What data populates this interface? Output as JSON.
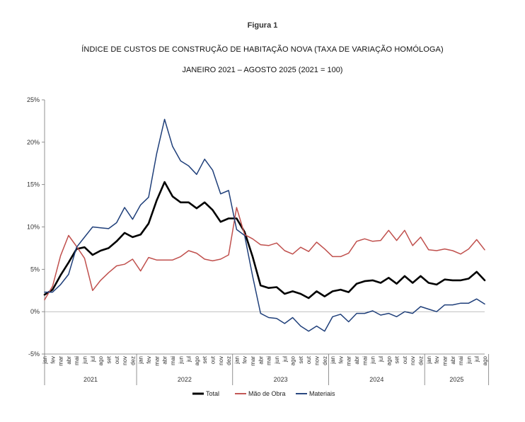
{
  "figure_label": "Figura 1",
  "chart_data": {
    "type": "line",
    "title": "ÍNDICE DE CUSTOS DE CONSTRUÇÃO DE HABITAÇÃO NOVA (TAXA DE VARIAÇÃO HOMÓLOGA)",
    "subtitle": "JANEIRO 2021 – AGOSTO 2025 (2021 = 100)",
    "xlabel": "",
    "ylabel": "",
    "ylim": [
      -5,
      25
    ],
    "yticks": [
      25,
      20,
      15,
      10,
      5,
      0,
      -5
    ],
    "ytick_labels": [
      "25%",
      "20%",
      "15%",
      "10%",
      "5%",
      "0%",
      "-5%"
    ],
    "month_labels": [
      "jan",
      "fev",
      "mar",
      "abr",
      "mai",
      "jun",
      "jul",
      "ago",
      "set",
      "out",
      "nov",
      "dez"
    ],
    "years": [
      {
        "label": "2021",
        "months": 12
      },
      {
        "label": "2022",
        "months": 12
      },
      {
        "label": "2023",
        "months": 12
      },
      {
        "label": "2024",
        "months": 12
      },
      {
        "label": "2025",
        "months": 8
      }
    ],
    "legend_position": "bottom",
    "series": [
      {
        "name": "Total",
        "color": "#000000",
        "width": 2.6,
        "values": [
          2.0,
          2.6,
          4.3,
          5.8,
          7.4,
          7.6,
          6.7,
          7.2,
          7.5,
          8.3,
          9.3,
          8.8,
          9.1,
          10.4,
          13.1,
          15.3,
          13.6,
          12.9,
          12.9,
          12.2,
          12.9,
          12.0,
          10.6,
          11.0,
          11.0,
          9.4,
          6.5,
          3.1,
          2.8,
          2.9,
          2.1,
          2.4,
          2.1,
          1.6,
          2.4,
          1.8,
          2.4,
          2.6,
          2.3,
          3.3,
          3.6,
          3.7,
          3.4,
          4.0,
          3.3,
          4.2,
          3.4,
          4.2,
          3.4,
          3.2,
          3.8,
          3.7,
          3.7,
          3.9,
          4.7,
          3.7
        ]
      },
      {
        "name": "Mão de Obra",
        "color": "#c0504d",
        "width": 1.5,
        "values": [
          1.4,
          3.0,
          6.6,
          9.0,
          7.7,
          6.3,
          2.5,
          3.7,
          4.6,
          5.4,
          5.6,
          6.2,
          4.8,
          6.4,
          6.1,
          6.1,
          6.1,
          6.5,
          7.2,
          6.9,
          6.2,
          6.0,
          6.2,
          6.7,
          12.3,
          9.1,
          8.6,
          7.9,
          7.8,
          8.1,
          7.2,
          6.8,
          7.6,
          7.1,
          8.2,
          7.4,
          6.5,
          6.5,
          6.9,
          8.3,
          8.6,
          8.3,
          8.4,
          9.6,
          8.4,
          9.6,
          7.8,
          8.8,
          7.3,
          7.2,
          7.4,
          7.2,
          6.8,
          7.4,
          8.5,
          7.3
        ]
      },
      {
        "name": "Materiais",
        "color": "#1f3f7a",
        "width": 1.5,
        "values": [
          2.3,
          2.3,
          3.2,
          4.4,
          7.6,
          8.8,
          10.0,
          9.9,
          9.8,
          10.5,
          12.3,
          10.9,
          12.6,
          13.5,
          18.6,
          22.7,
          19.5,
          17.8,
          17.2,
          16.2,
          18.0,
          16.7,
          13.9,
          14.3,
          9.7,
          9.0,
          4.2,
          -0.2,
          -0.7,
          -0.8,
          -1.4,
          -0.7,
          -1.7,
          -2.3,
          -1.7,
          -2.3,
          -0.6,
          -0.3,
          -1.2,
          -0.2,
          -0.2,
          0.1,
          -0.4,
          -0.2,
          -0.6,
          0.0,
          -0.2,
          0.6,
          0.3,
          0.0,
          0.8,
          0.8,
          1.0,
          1.0,
          1.5,
          0.9
        ]
      }
    ]
  }
}
